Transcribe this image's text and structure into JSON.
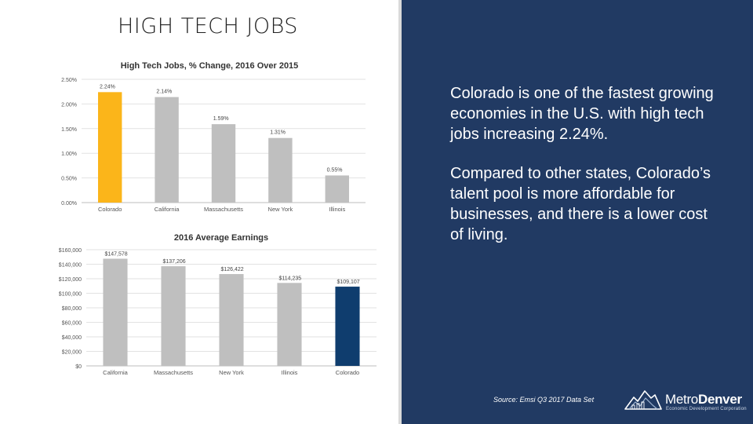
{
  "slide": {
    "title": "HIGH TECH JOBS"
  },
  "panel": {
    "paragraphs": [
      "Colorado is one of the fastest growing economies in the U.S. with high tech jobs increasing 2.24%.",
      "Compared to other states, Colorado’s talent pool is more affordable for businesses, and there is a lower cost of living."
    ],
    "source": "Source: Emsi Q3 2017 Data Set",
    "logo": {
      "word_light": "Metro",
      "word_bold": "Denver",
      "tagline": "Economic Development Corporation",
      "icon": "mountain-skyline-icon"
    }
  },
  "colors": {
    "bar_default": "#bfbfbf",
    "highlight_gold": "#fbb51a",
    "highlight_navy": "#0f3d6e",
    "panel_bg": "#213a63"
  },
  "chart_data": [
    {
      "type": "bar",
      "title": "High Tech Jobs, % Change, 2016 Over 2015",
      "categories": [
        "Colorado",
        "California",
        "Massachusetts",
        "New York",
        "Illinois"
      ],
      "values": [
        2.24,
        2.14,
        1.59,
        1.31,
        0.55
      ],
      "data_labels": [
        "2.24%",
        "2.14%",
        "1.59%",
        "1.31%",
        "0.55%"
      ],
      "y_ticks": [
        "0.00%",
        "0.50%",
        "1.00%",
        "1.50%",
        "2.00%",
        "2.50%"
      ],
      "ylim": [
        0,
        2.5
      ],
      "highlight": "Colorado",
      "grid": true
    },
    {
      "type": "bar",
      "title": "2016 Average Earnings",
      "categories": [
        "California",
        "Massachusetts",
        "New York",
        "Illinois",
        "Colorado"
      ],
      "values": [
        147578,
        137206,
        126422,
        114235,
        109107
      ],
      "data_labels": [
        "$147,578",
        "$137,206",
        "$126,422",
        "$114,235",
        "$109,107"
      ],
      "y_ticks": [
        "$0",
        "$20,000",
        "$40,000",
        "$60,000",
        "$80,000",
        "$100,000",
        "$120,000",
        "$140,000",
        "$160,000"
      ],
      "ylim": [
        0,
        160000
      ],
      "highlight": "Colorado",
      "grid": true
    }
  ]
}
